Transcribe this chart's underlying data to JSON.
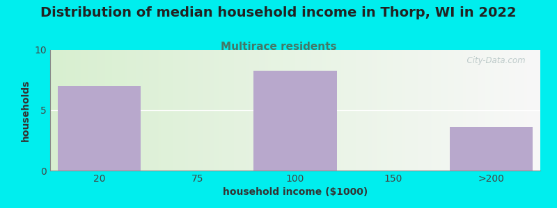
{
  "title": "Distribution of median household income in Thorp, WI in 2022",
  "subtitle": "Multirace residents",
  "categories": [
    "20",
    "75",
    "100",
    "150",
    ">200"
  ],
  "values": [
    7.0,
    0,
    8.3,
    0,
    3.6
  ],
  "bar_color": "#b8a8cc",
  "bar_width": 0.85,
  "xlabel": "household income ($1000)",
  "ylabel": "households",
  "ylim": [
    0,
    10
  ],
  "yticks": [
    0,
    5,
    10
  ],
  "background_outer": "#00EEEE",
  "grad_left": "#d8efd0",
  "grad_right": "#f8f8f8",
  "title_fontsize": 14,
  "subtitle_fontsize": 11,
  "subtitle_color": "#447766",
  "axis_label_fontsize": 10,
  "tick_fontsize": 10,
  "watermark": "  City-Data.com",
  "watermark_color": "#aabbbb"
}
